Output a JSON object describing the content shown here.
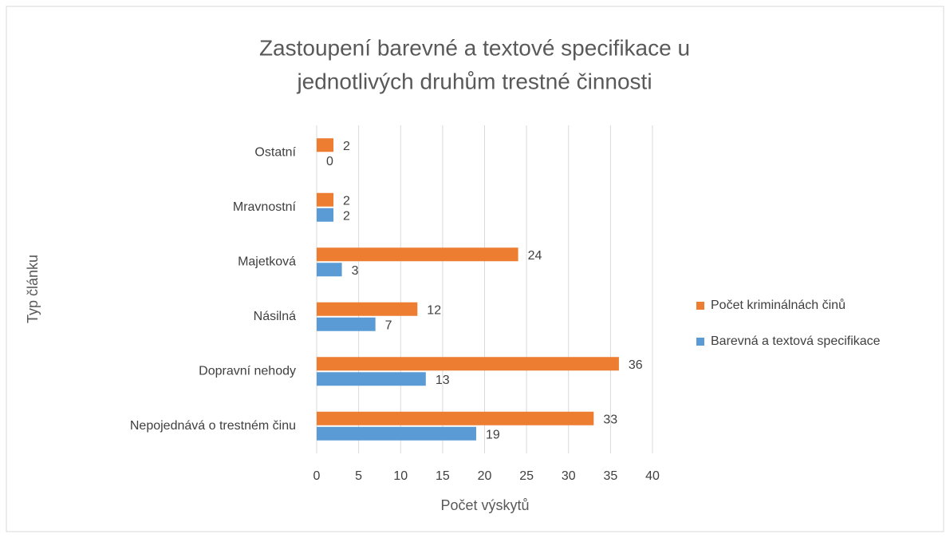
{
  "chart_data": {
    "type": "bar",
    "orientation": "horizontal",
    "title": "Zastoupení barevné a textové specifikace u jednotlivých druhům trestné činnosti",
    "xlabel": "Počet výskytů",
    "ylabel": "Typ článku",
    "categories": [
      "Ostatní",
      "Mravnostní",
      "Majetková",
      "Násilná",
      "Dopravní nehody",
      "Nepojednává o trestném činu"
    ],
    "series": [
      {
        "name": "Počet kriminálnách činů",
        "color": "#ed7d31",
        "values": [
          2,
          2,
          24,
          12,
          36,
          33
        ]
      },
      {
        "name": "Barevná a textová specifikace",
        "color": "#5b9bd5",
        "values": [
          0,
          2,
          3,
          7,
          13,
          19
        ]
      }
    ],
    "xlim": [
      0,
      40
    ],
    "xticks": [
      0,
      5,
      10,
      15,
      20,
      25,
      30,
      35,
      40
    ],
    "grid": true,
    "legend": "right"
  }
}
